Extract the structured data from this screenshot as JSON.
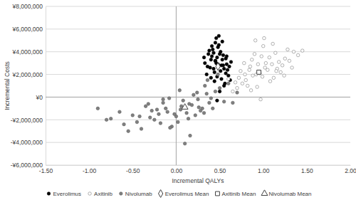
{
  "chart_data": {
    "type": "scatter",
    "x_label": "Incremental QALYs",
    "y_label": "Incremental Costs",
    "xlim": [
      -1.5,
      2.0
    ],
    "ylim": [
      -6000000,
      8000000
    ],
    "xticks": [
      {
        "value": -1.5,
        "label": "-1.50"
      },
      {
        "value": -1.0,
        "label": "-1.00"
      },
      {
        "value": -0.5,
        "label": "-0.50"
      },
      {
        "value": 0,
        "label": "0.00"
      },
      {
        "value": 0.5,
        "label": "0.50"
      },
      {
        "value": 1.0,
        "label": "1.00"
      },
      {
        "value": 1.5,
        "label": "1.50"
      },
      {
        "value": 2.0,
        "label": "2.00"
      }
    ],
    "yticks": [
      {
        "value": -6000000,
        "label": "-¥6,000,000"
      },
      {
        "value": -4000000,
        "label": "-¥4,000,000"
      },
      {
        "value": -2000000,
        "label": "-¥2,000,000"
      },
      {
        "value": 0,
        "label": "¥0"
      },
      {
        "value": 2000000,
        "label": "¥2,000,000"
      },
      {
        "value": 4000000,
        "label": "¥4,000,000"
      },
      {
        "value": 6000000,
        "label": "¥6,000,000"
      },
      {
        "value": 8000000,
        "label": "¥8,000,000"
      }
    ],
    "grid": true,
    "legend": "bottom",
    "series": [
      {
        "name": "Everolimus",
        "color": "#000000",
        "marker": "circle",
        "x": [
          0.45,
          0.52,
          0.38,
          0.6,
          0.41,
          0.55,
          0.48,
          0.33,
          0.62,
          0.5,
          0.44,
          0.57,
          0.36,
          0.53,
          0.47,
          0.4,
          0.58,
          0.46,
          0.51,
          0.43,
          0.35,
          0.63,
          0.49,
          0.56,
          0.39,
          0.54,
          0.42,
          0.59,
          0.47,
          0.52,
          0.37,
          0.61,
          0.45,
          0.5,
          0.48,
          0.44,
          0.53,
          0.41,
          0.57,
          0.46,
          0.32,
          0.55,
          0.49,
          0.43,
          0.58,
          0.51,
          0.4,
          0.47,
          0.54,
          0.45
        ],
        "values": [
          3200000,
          2800000,
          4100000,
          1900000,
          3600000,
          2500000,
          4400000,
          3000000,
          1500000,
          3800000,
          2200000,
          3400000,
          2700000,
          4900000,
          1800000,
          3300000,
          2900000,
          5200000,
          2300000,
          3900000,
          2000000,
          3100000,
          4600000,
          1200000,
          2600000,
          3700000,
          4200000,
          2400000,
          3500000,
          1600000,
          3800000,
          2700000,
          4800000,
          500000,
          2900000,
          1400000,
          3300000,
          4500000,
          2100000,
          3000000,
          3500000,
          1000000,
          5400000,
          2500000,
          3600000,
          4000000,
          1700000,
          -300000,
          2800000,
          3200000
        ]
      },
      {
        "name": "Axitinib",
        "color": "#ffffff",
        "marker": "circle",
        "x": [
          0.95,
          1.1,
          0.8,
          1.25,
          0.88,
          1.02,
          0.7,
          1.18,
          0.92,
          1.35,
          0.76,
          1.05,
          0.98,
          0.85,
          1.3,
          0.65,
          1.12,
          0.9,
          1.22,
          0.82,
          1.0,
          1.4,
          0.74,
          1.08,
          0.96,
          0.87,
          1.16,
          0.6,
          1.28,
          0.93,
          1.03,
          0.79,
          1.14,
          0.99,
          1.45,
          0.68,
          1.2,
          0.91,
          0.84,
          1.07,
          0.97,
          1.33,
          0.72,
          1.11,
          0.94,
          0.86,
          1.24,
          1.01,
          0.78,
          1.15
        ],
        "values": [
          2200000,
          2900000,
          1500000,
          3400000,
          1900000,
          2600000,
          800000,
          3100000,
          2000000,
          4000000,
          1200000,
          2400000,
          3600000,
          2700000,
          3200000,
          500000,
          1700000,
          3800000,
          2800000,
          1000000,
          4500000,
          3700000,
          2300000,
          1400000,
          2100000,
          3300000,
          2500000,
          1600000,
          4200000,
          900000,
          3000000,
          2000000,
          3900000,
          1800000,
          4100000,
          1300000,
          2200000,
          5000000,
          2400000,
          3500000,
          -200000,
          2600000,
          1700000,
          4700000,
          2900000,
          600000,
          1900000,
          5200000,
          3000000,
          2300000
        ]
      },
      {
        "name": "Nivolumab",
        "color": "#808080",
        "marker": "circle",
        "x": [
          0.1,
          -0.2,
          0.35,
          -0.45,
          0.05,
          0.25,
          -0.1,
          0.5,
          -0.3,
          0.15,
          -0.6,
          0.4,
          0.0,
          -0.15,
          0.3,
          -0.75,
          0.2,
          -0.05,
          0.6,
          -0.35,
          0.12,
          -0.25,
          0.45,
          -0.5,
          0.08,
          0.28,
          -0.4,
          0.18,
          -0.12,
          0.55,
          -0.9,
          0.02,
          0.33,
          -0.22,
          0.22,
          -0.08,
          0.7,
          -0.55,
          0.14,
          0.38,
          -0.18,
          0.06,
          -0.65,
          0.48,
          -0.02,
          0.26,
          -0.32,
          0.16,
          0.42,
          -0.8,
          0.04,
          0.32,
          -0.28,
          0.65,
          -0.42,
          0.1,
          -0.07,
          0.24,
          -0.15,
          0.36
        ],
        "values": [
          -900000,
          -1500000,
          300000,
          -2200000,
          -1100000,
          -200000,
          -1300000,
          800000,
          -1800000,
          -600000,
          -2400000,
          -100000,
          -1700000,
          -500000,
          -1000000,
          -1900000,
          200000,
          -2600000,
          1200000,
          -800000,
          -1400000,
          -2000000,
          500000,
          -1600000,
          -300000,
          -1200000,
          -2800000,
          -700000,
          -1000000,
          -400000,
          -1000000,
          -2200000,
          1000000,
          -1100000,
          -1600000,
          -100000,
          400000,
          -3000000,
          -1900000,
          -500000,
          -2300000,
          -800000,
          -1300000,
          2000000,
          -1500000,
          -900000,
          -600000,
          -3400000,
          -1000000,
          -2000000,
          600000,
          -1400000,
          -1200000,
          -500000,
          -1700000,
          -4100000,
          -2700000,
          400000,
          -200000,
          1500000
        ]
      },
      {
        "name": "Everolimus Mean",
        "color": "#ffffff",
        "marker": "diamond",
        "x": [
          0.48
        ],
        "values": [
          2700000
        ]
      },
      {
        "name": "Axitinib Mean",
        "color": "#ffffff",
        "marker": "square",
        "x": [
          0.95
        ],
        "values": [
          2200000
        ]
      },
      {
        "name": "Nivolumab Mean",
        "color": "#ffffff",
        "marker": "triangle",
        "x": [
          0.1
        ],
        "values": [
          -900000
        ]
      }
    ]
  }
}
